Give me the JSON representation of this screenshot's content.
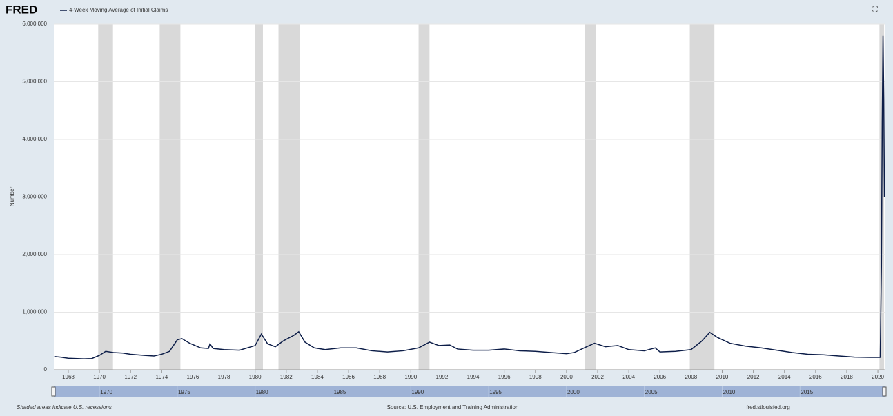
{
  "header": {
    "logo": "FRED",
    "legend": "4-Week Moving Average of Initial Claims"
  },
  "chart_data": {
    "type": "line",
    "y_label": "Number",
    "series": [
      {
        "name": "4-Week Moving Average of Initial Claims",
        "color": "#0c1d48",
        "x": [
          1967.1,
          1967.5,
          1968,
          1969,
          1969.5,
          1970,
          1970.4,
          1970.9,
          1971.5,
          1972,
          1972.9,
          1973.5,
          1974,
          1974.5,
          1975,
          1975.3,
          1975.8,
          1976.5,
          1977,
          1977.1,
          1977.3,
          1978,
          1979,
          1980,
          1980.4,
          1980.8,
          1981.3,
          1981.8,
          1982.5,
          1982.8,
          1983.2,
          1983.8,
          1984.5,
          1985.5,
          1986.5,
          1987.5,
          1988.5,
          1989.5,
          1990.5,
          1991.2,
          1991.8,
          1992.5,
          1993,
          1994,
          1995,
          1996,
          1997,
          1998,
          1999,
          2000,
          2000.5,
          2001.3,
          2001.8,
          2002.5,
          2003.3,
          2004,
          2005,
          2005.7,
          2006,
          2007,
          2008,
          2008.7,
          2009.2,
          2009.7,
          2010.5,
          2011.5,
          2012.5,
          2013.5,
          2014.5,
          2015.5,
          2016.5,
          2017.5,
          2018.5,
          2019.5,
          2020.15,
          2020.23,
          2020.28,
          2020.33,
          2020.38,
          2020.42
        ],
        "values": [
          230000,
          220000,
          200000,
          190000,
          195000,
          250000,
          320000,
          300000,
          290000,
          270000,
          250000,
          240000,
          270000,
          320000,
          520000,
          540000,
          460000,
          380000,
          370000,
          450000,
          370000,
          350000,
          340000,
          420000,
          620000,
          450000,
          400000,
          500000,
          600000,
          660000,
          480000,
          380000,
          350000,
          380000,
          380000,
          330000,
          310000,
          330000,
          380000,
          480000,
          420000,
          430000,
          360000,
          340000,
          340000,
          360000,
          330000,
          320000,
          300000,
          280000,
          300000,
          400000,
          460000,
          400000,
          420000,
          350000,
          330000,
          380000,
          310000,
          320000,
          350000,
          500000,
          650000,
          560000,
          460000,
          410000,
          380000,
          340000,
          300000,
          270000,
          260000,
          240000,
          220000,
          215000,
          215000,
          1800000,
          4300000,
          5800000,
          4700000,
          3000000
        ]
      }
    ],
    "recessions": [
      [
        1969.92,
        1970.87
      ],
      [
        1973.87,
        1975.2
      ],
      [
        1980.0,
        1980.5
      ],
      [
        1981.5,
        1982.87
      ],
      [
        1990.5,
        1991.2
      ],
      [
        2001.2,
        2001.87
      ],
      [
        2007.92,
        2009.5
      ],
      [
        2020.1,
        2020.4
      ]
    ],
    "recession_color": "#d9d9d9",
    "xlim": [
      1967.07,
      2020.44
    ],
    "ylim": [
      0,
      6000000
    ],
    "xticks": [
      1968,
      1970,
      1972,
      1974,
      1976,
      1978,
      1980,
      1982,
      1984,
      1986,
      1988,
      1990,
      1992,
      1994,
      1996,
      1998,
      2000,
      2002,
      2004,
      2006,
      2008,
      2010,
      2012,
      2014,
      2016,
      2018,
      2020
    ],
    "yticks": [
      0,
      {
        "value": 1000000,
        "label": "1,000,000"
      },
      {
        "value": 2000000,
        "label": "2,000,000"
      },
      {
        "value": 3000000,
        "label": "3,000,000"
      },
      {
        "value": 4000000,
        "label": "4,000,000"
      },
      {
        "value": 5000000,
        "label": "5,000,000"
      },
      {
        "value": 6000000,
        "label": "6,000,000"
      }
    ],
    "grid": true,
    "navigator_ticks": [
      1970,
      1975,
      1980,
      1985,
      1990,
      1995,
      2000,
      2005,
      2010,
      2015
    ]
  },
  "footer": {
    "note": "Shaded areas indicate U.S. recessions",
    "source": "Source: U.S. Employment and Training Administration",
    "site": "fred.stlouisfed.org"
  }
}
